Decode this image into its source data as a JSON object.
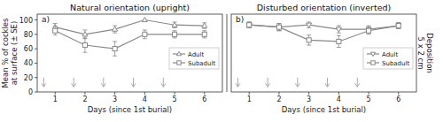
{
  "chart_data": [
    {
      "type": "line",
      "title": "Natural orientation (upright)",
      "x_label": "Days (since 1st burial)",
      "y_label": "Mean % of cockles\nat surface (± SE)",
      "panel_label": "a)",
      "x": [
        1,
        2,
        3,
        4,
        5,
        6
      ],
      "series": [
        {
          "name": "Adult",
          "color": "#888888",
          "marker": "triangle-up",
          "values": [
            90,
            80,
            87,
            100,
            93,
            92
          ],
          "errors": [
            5,
            6,
            5,
            0,
            4,
            4
          ]
        },
        {
          "name": "Subadult",
          "color": "#888888",
          "marker": "square",
          "values": [
            85,
            65,
            60,
            80,
            80,
            80
          ],
          "errors": [
            6,
            10,
            10,
            6,
            5,
            5
          ]
        }
      ],
      "arrows": {
        "x": [
          0.62,
          1.62,
          2.62,
          3.62,
          4.62
        ],
        "y_from": 20,
        "y_to": 7,
        "color": "#aaaaaa"
      },
      "xlim": [
        0.4,
        6.6
      ],
      "xticks": [
        1,
        2,
        3,
        4,
        5,
        6
      ],
      "ylim": [
        0,
        108
      ],
      "yticks": [
        0,
        20,
        40,
        60,
        80,
        100
      ],
      "legend": "right"
    },
    {
      "type": "line",
      "title": "Disturbed orientation (inverted)",
      "x_label": "Days (since 1st burial)",
      "panel_label": "b)",
      "side_label": "Deposition\n5 x 2 cm",
      "x": [
        1,
        2,
        3,
        4,
        5,
        6
      ],
      "series": [
        {
          "name": "Adult",
          "color": "#888888",
          "marker": "triangle-down",
          "values": [
            93,
            90,
            93,
            87,
            87,
            92
          ],
          "errors": [
            4,
            5,
            4,
            5,
            5,
            4
          ]
        },
        {
          "name": "Subadult",
          "color": "#888888",
          "marker": "square",
          "values": [
            93,
            90,
            72,
            70,
            85,
            92
          ],
          "errors": [
            4,
            5,
            7,
            8,
            5,
            4
          ]
        }
      ],
      "arrows": {
        "x": [
          0.62,
          1.62,
          2.62,
          3.62,
          4.62
        ],
        "y_from": 20,
        "y_to": 7,
        "color": "#aaaaaa"
      },
      "xlim": [
        0.4,
        6.6
      ],
      "xticks": [
        1,
        2,
        3,
        4,
        5,
        6
      ],
      "ylim": [
        0,
        108
      ],
      "tick_labels": "x",
      "legend": "right"
    }
  ]
}
